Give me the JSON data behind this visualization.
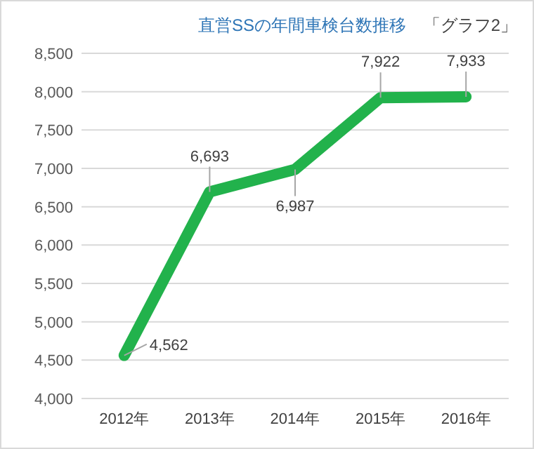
{
  "chart_data": {
    "type": "line",
    "title": "直営SSの年間車検台数推移",
    "annotations": [
      "「グラフ2」"
    ],
    "categories": [
      "2012年",
      "2013年",
      "2014年",
      "2015年",
      "2016年"
    ],
    "series": [
      {
        "color": "#22b24c",
        "values": [
          4562,
          6693,
          6987,
          7922,
          7933
        ]
      }
    ],
    "value_labels": [
      "4,562",
      "6,693",
      "6,987",
      "7,922",
      "7,933"
    ],
    "ylim": [
      4000,
      8500
    ],
    "yticks": [
      {
        "value": 4000,
        "label": "4,000"
      },
      {
        "value": 4500,
        "label": "4,500"
      },
      {
        "value": 5000,
        "label": "5,000"
      },
      {
        "value": 5500,
        "label": "5,500"
      },
      {
        "value": 6000,
        "label": "6,000"
      },
      {
        "value": 6500,
        "label": "6,500"
      },
      {
        "value": 7000,
        "label": "7,000"
      },
      {
        "value": 7500,
        "label": "7,500"
      },
      {
        "value": 8000,
        "label": "8,000"
      },
      {
        "value": 8500,
        "label": "8,500"
      }
    ],
    "grid": "y"
  }
}
